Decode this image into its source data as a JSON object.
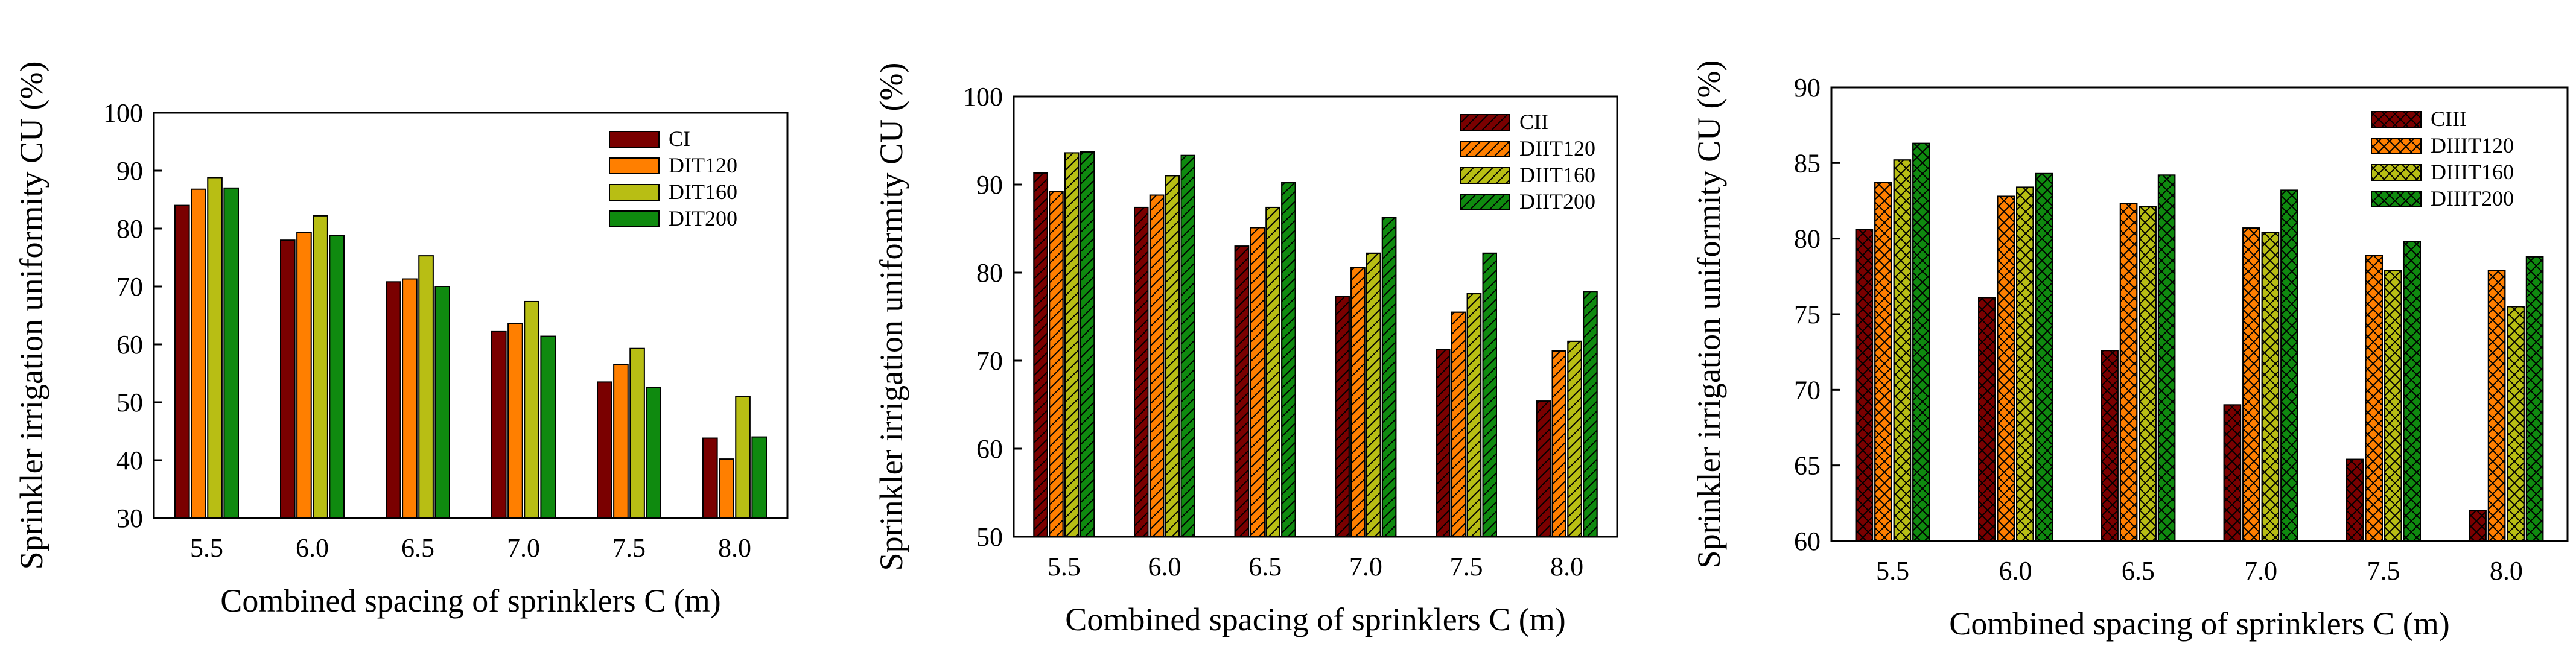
{
  "chart_data": [
    {
      "type": "bar",
      "title": "",
      "xlabel": "Combined spacing of sprinklers C (m)",
      "ylabel": "Sprinkler irrigation uniformity CU (%)",
      "ylim": [
        30,
        100
      ],
      "yticks": [
        30,
        40,
        50,
        60,
        70,
        80,
        90,
        100
      ],
      "categories": [
        "5.5",
        "6.0",
        "6.5",
        "7.0",
        "7.5",
        "8.0"
      ],
      "legend_position": "top-right",
      "series": [
        {
          "name": "CI",
          "color": "#7a0000",
          "pattern": "solid",
          "values": [
            84.0,
            78.0,
            70.8,
            62.2,
            53.5,
            43.8
          ]
        },
        {
          "name": "DIT120",
          "color": "#ff7f00",
          "pattern": "solid",
          "values": [
            86.8,
            79.3,
            71.3,
            63.6,
            56.5,
            40.2
          ]
        },
        {
          "name": "DIT160",
          "color": "#b8be14",
          "pattern": "solid",
          "values": [
            88.8,
            82.2,
            75.3,
            67.4,
            59.3,
            51.0
          ]
        },
        {
          "name": "DIT200",
          "color": "#0f8a0f",
          "pattern": "solid",
          "values": [
            87.0,
            78.8,
            70.0,
            61.4,
            52.5,
            44.0
          ]
        }
      ]
    },
    {
      "type": "bar",
      "title": "",
      "xlabel": "Combined spacing of sprinklers C (m)",
      "ylabel": "Sprinkler irrigation uniformity CU (%)",
      "ylim": [
        50,
        100
      ],
      "yticks": [
        50,
        60,
        70,
        80,
        90,
        100
      ],
      "categories": [
        "5.5",
        "6.0",
        "6.5",
        "7.0",
        "7.5",
        "8.0"
      ],
      "legend_position": "top-right",
      "series": [
        {
          "name": "CII",
          "color": "#7a0000",
          "pattern": "hatch",
          "values": [
            91.3,
            87.4,
            83.0,
            77.3,
            71.3,
            65.4
          ]
        },
        {
          "name": "DIIT120",
          "color": "#ff7f00",
          "pattern": "hatch",
          "values": [
            89.2,
            88.8,
            85.1,
            80.6,
            75.5,
            71.1
          ]
        },
        {
          "name": "DIIT160",
          "color": "#b8be14",
          "pattern": "hatch",
          "values": [
            93.6,
            91.0,
            87.4,
            82.2,
            77.6,
            72.2
          ]
        },
        {
          "name": "DIIT200",
          "color": "#0f8a0f",
          "pattern": "hatch",
          "values": [
            93.7,
            93.3,
            90.2,
            86.3,
            82.2,
            77.8
          ]
        }
      ]
    },
    {
      "type": "bar",
      "title": "",
      "xlabel": "Combined spacing of sprinklers C (m)",
      "ylabel": "Sprinkler irrigation uniformity CU (%)",
      "ylim": [
        60,
        90
      ],
      "yticks": [
        60,
        65,
        70,
        75,
        80,
        85,
        90
      ],
      "categories": [
        "5.5",
        "6.0",
        "6.5",
        "7.0",
        "7.5",
        "8.0"
      ],
      "legend_position": "top-right",
      "series": [
        {
          "name": "CIII",
          "color": "#7a0000",
          "pattern": "cross",
          "values": [
            80.6,
            76.1,
            72.6,
            69.0,
            65.4,
            62.0
          ]
        },
        {
          "name": "DIIIT120",
          "color": "#ff7f00",
          "pattern": "cross",
          "values": [
            83.7,
            82.8,
            82.3,
            80.7,
            78.9,
            77.9
          ]
        },
        {
          "name": "DIIIT160",
          "color": "#b8be14",
          "pattern": "cross",
          "values": [
            85.2,
            83.4,
            82.1,
            80.4,
            77.9,
            75.5
          ]
        },
        {
          "name": "DIIIT200",
          "color": "#0f8a0f",
          "pattern": "cross",
          "values": [
            86.3,
            84.3,
            84.2,
            83.2,
            79.8,
            78.8
          ]
        }
      ]
    }
  ]
}
